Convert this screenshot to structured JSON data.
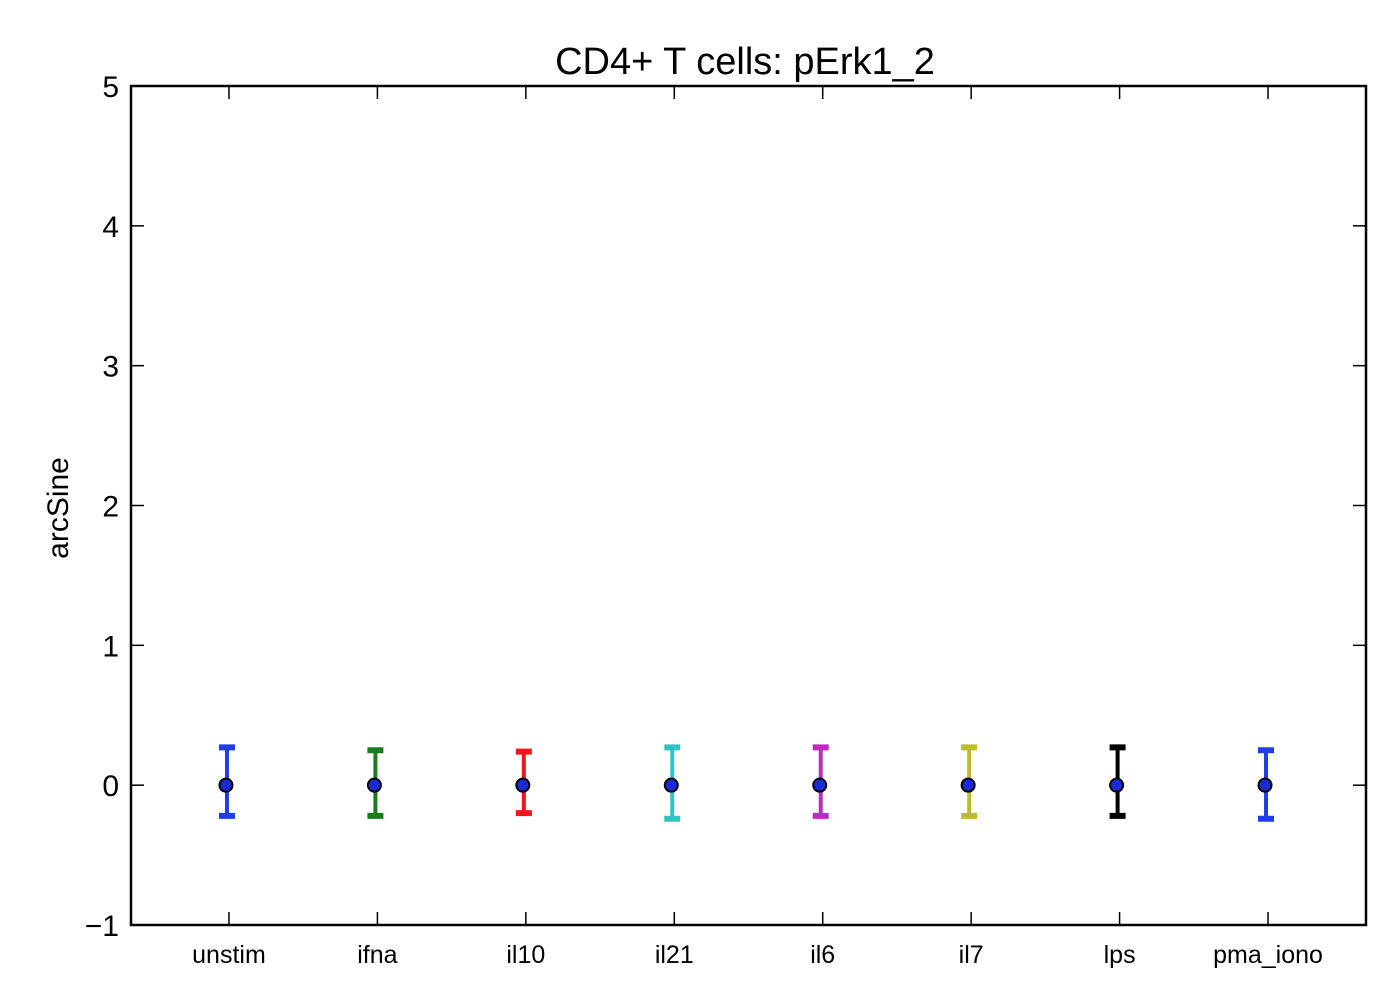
{
  "chart_data": {
    "type": "scatter",
    "title": "CD4+ T cells: pErk1_2",
    "xlabel": "",
    "ylabel": "arcSine",
    "ylim": [
      -1,
      5
    ],
    "yticks": [
      -1,
      0,
      1,
      2,
      3,
      4,
      5
    ],
    "ytick_labels": [
      "−1",
      "0",
      "1",
      "2",
      "3",
      "4",
      "5"
    ],
    "categories": [
      "unstim",
      "ifna",
      "il10",
      "il21",
      "il6",
      "il7",
      "lps",
      "pma_iono"
    ],
    "grid": false,
    "marker_color": "#1a2bd6",
    "points": [
      {
        "category": "unstim",
        "value": 0,
        "low": -0.22,
        "high": 0.27,
        "color": "#1f3cf0"
      },
      {
        "category": "ifna",
        "value": 0,
        "low": -0.22,
        "high": 0.25,
        "color": "#1b7a1b"
      },
      {
        "category": "il10",
        "value": 0,
        "low": -0.2,
        "high": 0.24,
        "color": "#f0141e"
      },
      {
        "category": "il21",
        "value": 0,
        "low": -0.24,
        "high": 0.27,
        "color": "#2ec4c4"
      },
      {
        "category": "il6",
        "value": 0,
        "low": -0.22,
        "high": 0.27,
        "color": "#c02ac0"
      },
      {
        "category": "il7",
        "value": 0,
        "low": -0.22,
        "high": 0.27,
        "color": "#bdbd2a"
      },
      {
        "category": "lps",
        "value": 0,
        "low": -0.22,
        "high": 0.27,
        "color": "#000000"
      },
      {
        "category": "pma_iono",
        "value": 0,
        "low": -0.24,
        "high": 0.25,
        "color": "#1f3cf0"
      }
    ]
  }
}
